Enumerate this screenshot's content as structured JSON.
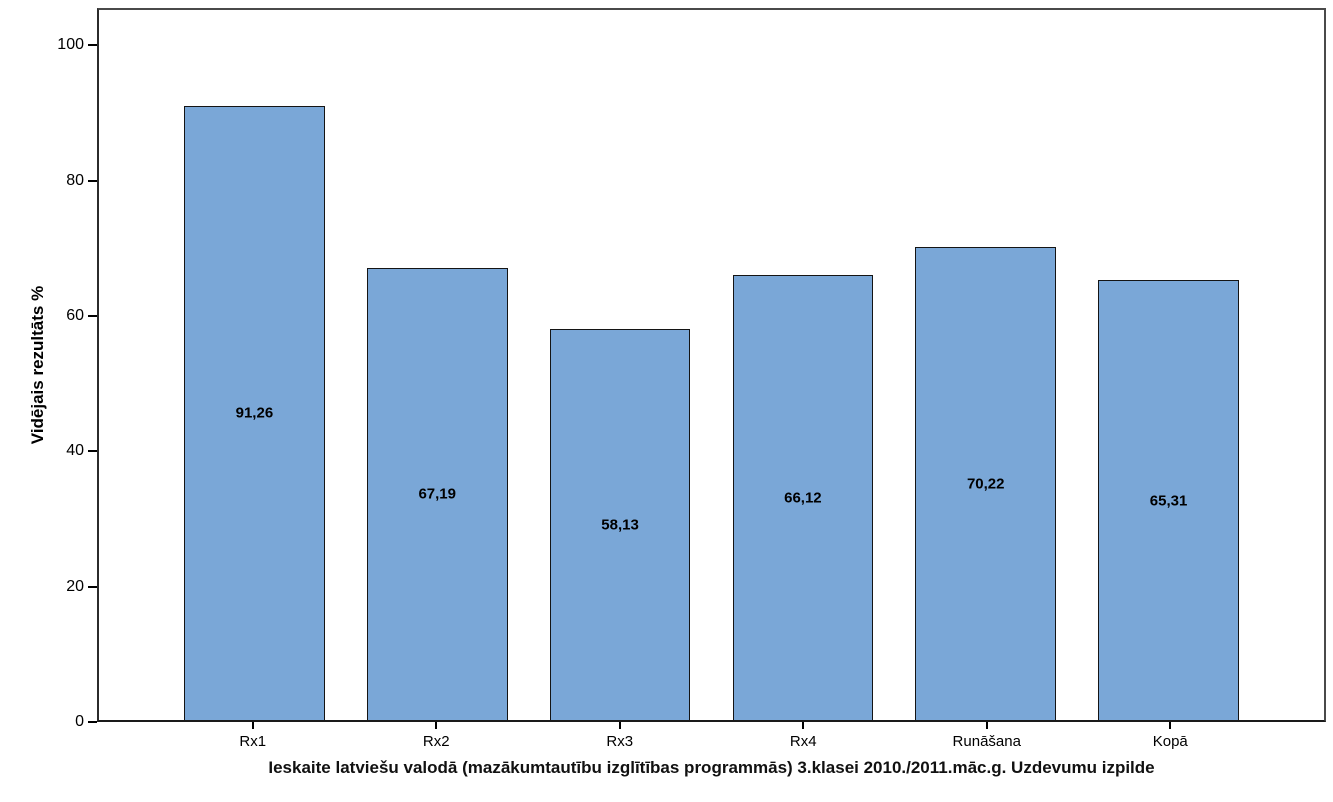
{
  "chart_data": {
    "type": "bar",
    "categories": [
      "Rx1",
      "Rx2",
      "Rx3",
      "Rx4",
      "Runāšana",
      "Kopā"
    ],
    "values": [
      91.26,
      67.19,
      58.13,
      66.12,
      70.22,
      65.31
    ],
    "value_labels": [
      "91,26",
      "67,19",
      "58,13",
      "66,12",
      "70,22",
      "65,31"
    ],
    "title": "",
    "xlabel": "Ieskaite latviešu valodā (mazākumtautību izglītības programmās) 3.klasei 2010./2011.māc.g. Uzdevumu izpilde",
    "ylabel": "Vidējais rezultāts %",
    "ylim": [
      0,
      105.5
    ],
    "yticks": [
      0,
      20,
      40,
      60,
      80,
      100
    ],
    "grid": false,
    "legend": "none",
    "bar_color": "#7aa7d7",
    "bar_border_color": "#141414",
    "panel_border_color": "#4a4a4a",
    "text_color": "#000000",
    "background_color": "#ffffff"
  }
}
